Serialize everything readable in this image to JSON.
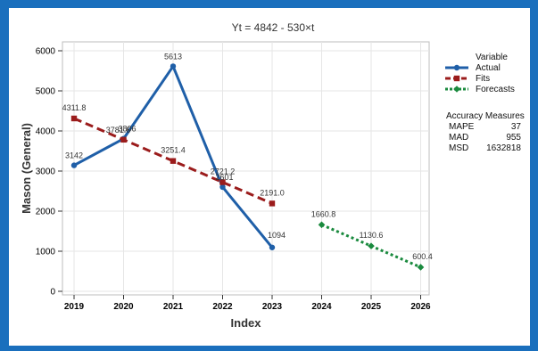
{
  "chart_data": {
    "type": "line",
    "title": "Yt = 4842 - 530×t",
    "xlabel": "Index",
    "ylabel": "Mason (General)",
    "categories": [
      "2019",
      "2020",
      "2021",
      "2022",
      "2023",
      "2024",
      "2025",
      "2026"
    ],
    "ylim": [
      0,
      6000
    ],
    "yticks": [
      "0",
      "1000",
      "2000",
      "3000",
      "4000",
      "5000",
      "6000"
    ],
    "grid": true,
    "legend_position": "right",
    "legend_title": "Variable",
    "series": [
      {
        "name": "Actual",
        "color": "#1f5fa8",
        "style": "solid",
        "marker": "circle",
        "x": [
          "2019",
          "2020",
          "2021",
          "2022",
          "2023"
        ],
        "values": [
          3142,
          3806,
          5613,
          2601,
          1094
        ],
        "labels": [
          "3142",
          "3806",
          "5613",
          "2601",
          "1094"
        ]
      },
      {
        "name": "Fits",
        "color": "#9b1c1c",
        "style": "dashed",
        "marker": "square",
        "x": [
          "2019",
          "2020",
          "2021",
          "2022",
          "2023"
        ],
        "values": [
          4311.8,
          3781.6,
          3251.4,
          2721.2,
          2191.0
        ],
        "labels": [
          "4311.8",
          "3781.6",
          "3251.4",
          "2721.2",
          "2191.0"
        ]
      },
      {
        "name": "Forecasts",
        "color": "#1a8a3e",
        "style": "dotted",
        "marker": "diamond",
        "x": [
          "2024",
          "2025",
          "2026"
        ],
        "values": [
          1660.8,
          1130.6,
          600.4
        ],
        "labels": [
          "1660.8",
          "1130.6",
          "600.4"
        ]
      }
    ],
    "accuracy": {
      "title": "Accuracy Measures",
      "rows": [
        {
          "name": "MAPE",
          "value": "37"
        },
        {
          "name": "MAD",
          "value": "955"
        },
        {
          "name": "MSD",
          "value": "1632818"
        }
      ]
    }
  }
}
